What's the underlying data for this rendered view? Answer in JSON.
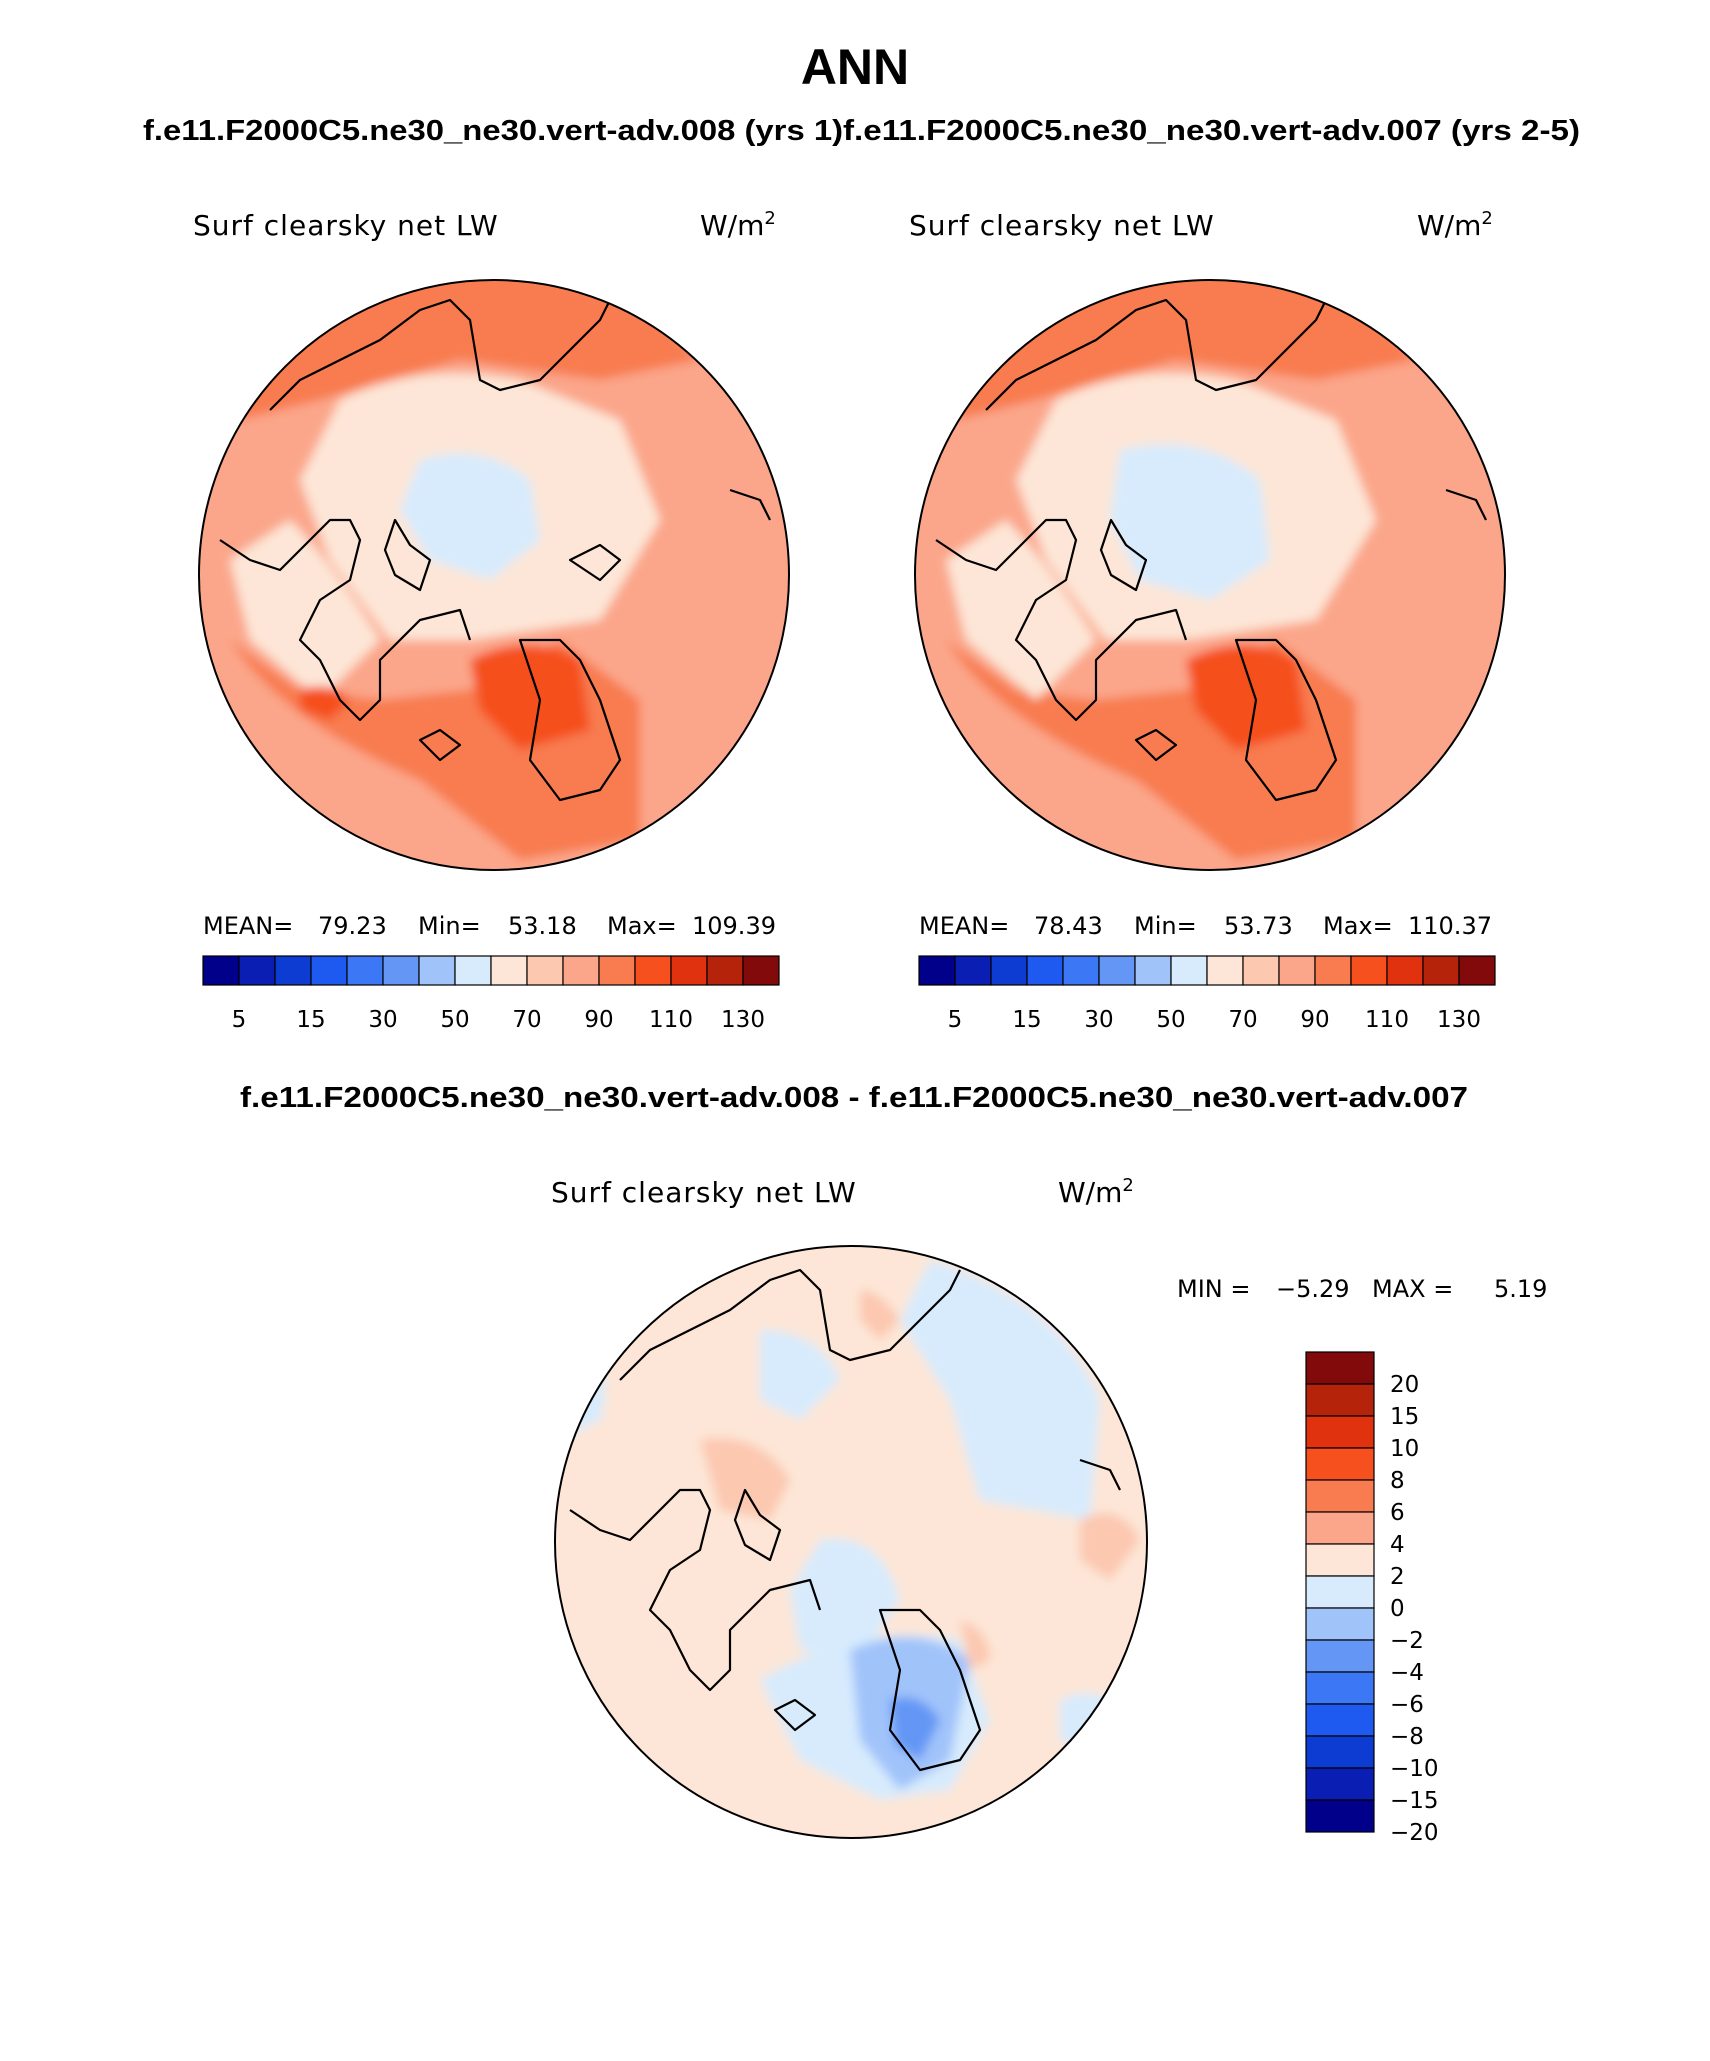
{
  "title": "ANN",
  "subtitle_left": "f.e11.F2000C5.ne30_ne30.vert-adv.008 (yrs 1)",
  "subtitle_right": "f.e11.F2000C5.ne30_ne30.vert-adv.007 (yrs 2-5)",
  "diff_title": "f.e11.F2000C5.ne30_ne30.vert-adv.008 - f.e11.F2000C5.ne30_ne30.vert-adv.007",
  "panels": [
    {
      "variable": "Surf clearsky net LW",
      "units": "W/m",
      "units_sup": "2",
      "mean_label": "MEAN=",
      "mean": "79.23",
      "min_label": "Min=",
      "min": "53.18",
      "max_label": "Max=",
      "max": "109.39"
    },
    {
      "variable": "Surf clearsky net LW",
      "units": "W/m",
      "units_sup": "2",
      "mean_label": "MEAN=",
      "mean": "78.43",
      "min_label": "Min=",
      "min": "53.73",
      "max_label": "Max=",
      "max": "110.37"
    }
  ],
  "diff_panel": {
    "variable": "Surf clearsky net LW",
    "units": "W/m",
    "units_sup": "2",
    "min_label": "MIN =",
    "min": "−5.29",
    "max_label": "MAX =",
    "max": "5.19"
  },
  "colorbar_abs": {
    "colors": [
      "#00008b",
      "#0a1eb4",
      "#0c3cd2",
      "#1e5af0",
      "#3c78f5",
      "#6496f5",
      "#a0c3fa",
      "#d7ebfd",
      "#fde6d7",
      "#fcc8b0",
      "#fba68a",
      "#f87c50",
      "#f5501e",
      "#e13210",
      "#b4230a",
      "#820a0a"
    ],
    "tick_labels": [
      "5",
      "15",
      "30",
      "50",
      "70",
      "90",
      "110",
      "130"
    ]
  },
  "colorbar_diff": {
    "colors": [
      "#820a0a",
      "#b4230a",
      "#e13210",
      "#f5501e",
      "#f87c50",
      "#fba68a",
      "#fde6d7",
      "#d7ebfd",
      "#a0c3fa",
      "#6496f5",
      "#3c78f5",
      "#1e5af0",
      "#0c3cd2",
      "#0a1eb4",
      "#00008b"
    ],
    "tick_labels": [
      "20",
      "15",
      "10",
      "8",
      "6",
      "4",
      "2",
      "0",
      "−2",
      "−4",
      "−6",
      "−8",
      "−10",
      "−15",
      "−20"
    ]
  }
}
